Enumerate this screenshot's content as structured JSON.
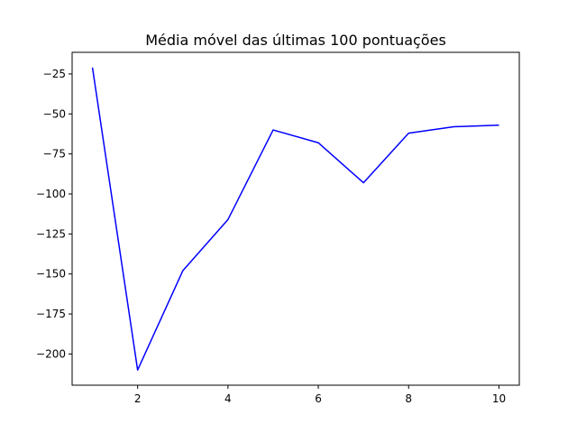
{
  "chart_data": {
    "type": "line",
    "title": "Média móvel das últimas 100 pontuações",
    "xlabel": "",
    "ylabel": "",
    "x": [
      1,
      2,
      3,
      4,
      5,
      6,
      7,
      8,
      9,
      10
    ],
    "series": [
      {
        "values": [
          -21,
          -210,
          -148,
          -116,
          -60,
          -68,
          -93,
          -62,
          -58,
          -57
        ],
        "color": "#0000ff"
      }
    ],
    "xlim": [
      0.55,
      10.45
    ],
    "ylim": [
      -219.5,
      -11.5
    ],
    "xticks": [
      2,
      4,
      6,
      8,
      10
    ],
    "xtick_labels": [
      "2",
      "4",
      "6",
      "8",
      "10"
    ],
    "yticks": [
      -25,
      -50,
      -75,
      -100,
      -125,
      -150,
      -175,
      -200
    ],
    "ytick_labels": [
      "−25",
      "−50",
      "−75",
      "−100",
      "−125",
      "−150",
      "−175",
      "−200"
    ],
    "grid": false,
    "legend": false
  }
}
